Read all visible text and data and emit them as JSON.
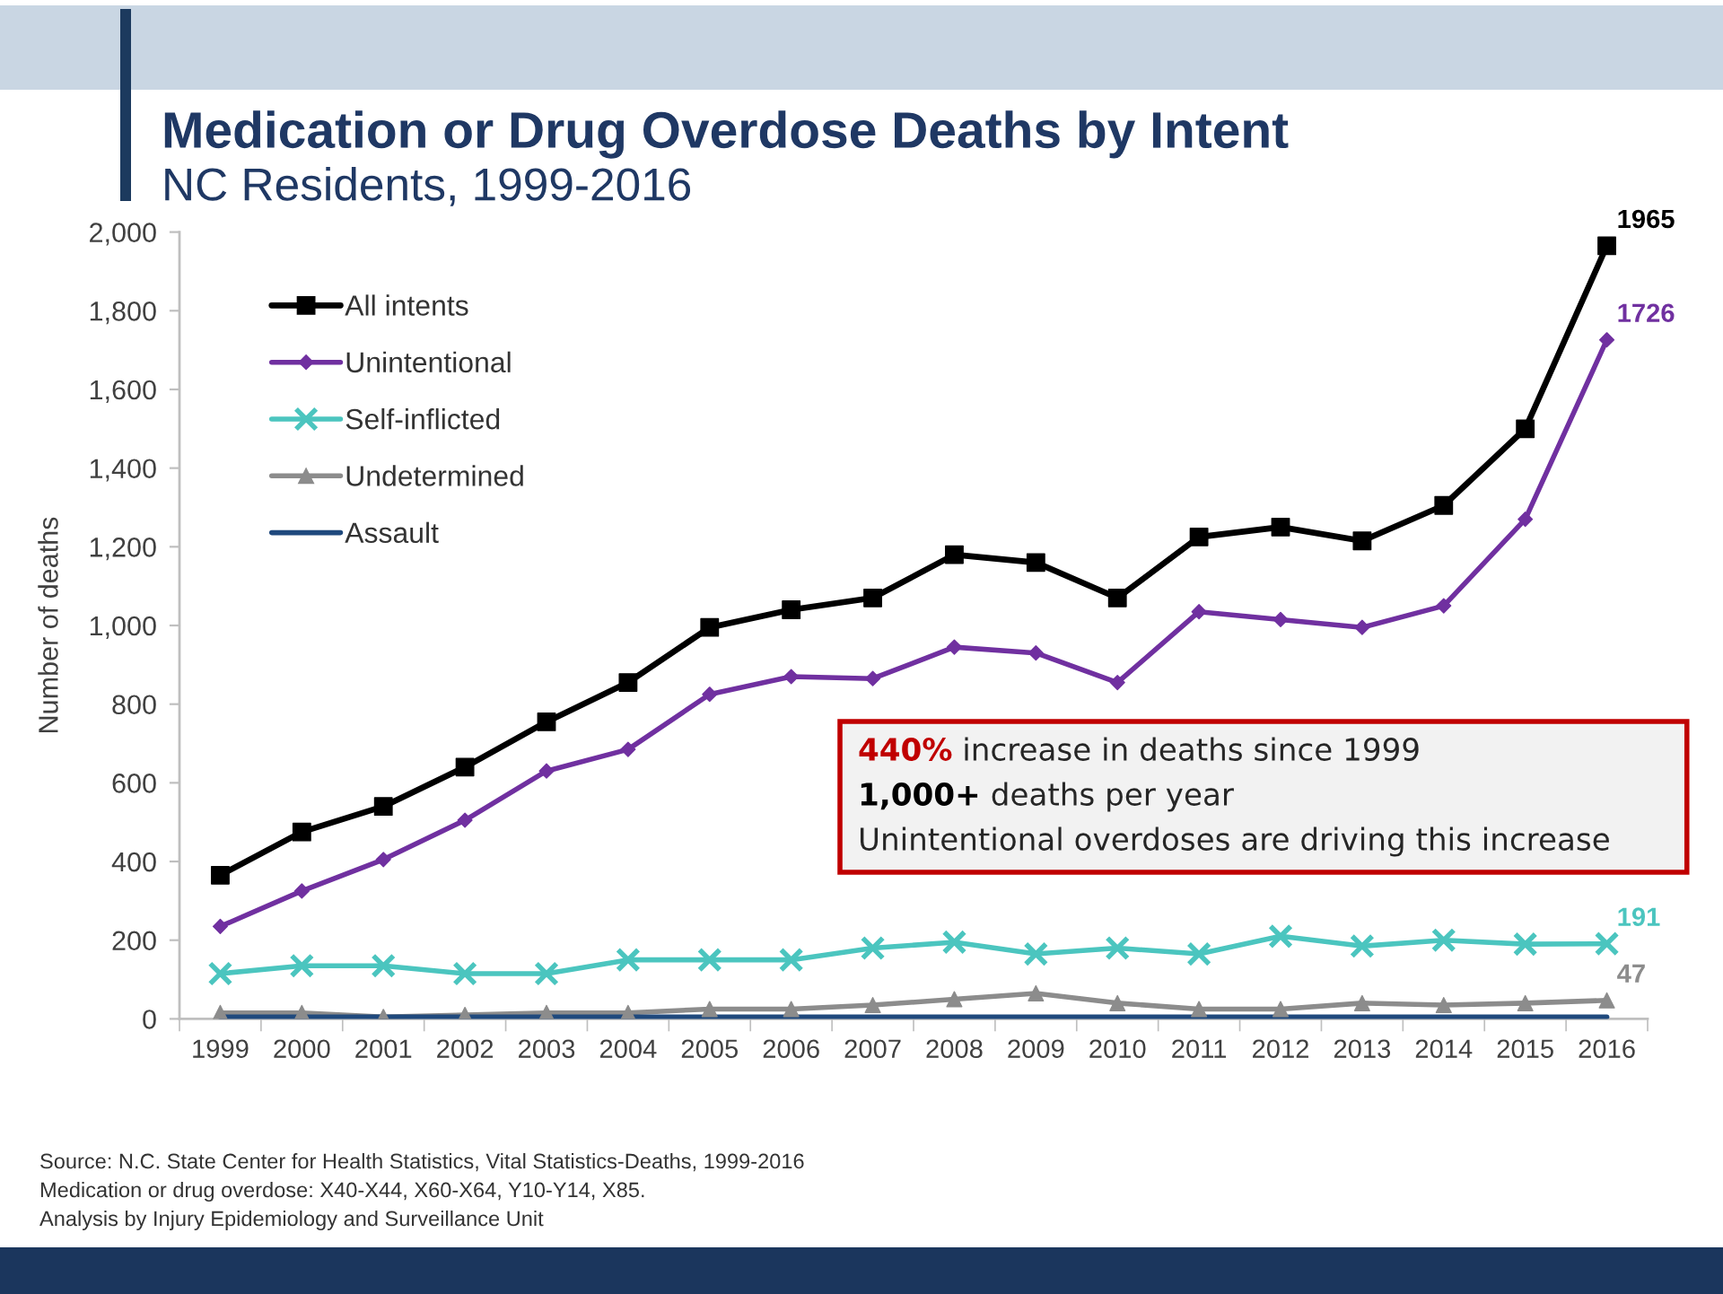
{
  "chart_data": {
    "type": "line",
    "title": "Medication or Drug Overdose Deaths by Intent",
    "subtitle": "NC Residents, 1999-2016",
    "ylabel": "Number of deaths",
    "categories": [
      "1999",
      "2000",
      "2001",
      "2002",
      "2003",
      "2004",
      "2005",
      "2006",
      "2007",
      "2008",
      "2009",
      "2010",
      "2011",
      "2012",
      "2013",
      "2014",
      "2015",
      "2016"
    ],
    "ylim": [
      0,
      2000
    ],
    "yticks": [
      0,
      200,
      400,
      600,
      800,
      {
        "value": 1000,
        "label": "1,000"
      },
      {
        "value": 1200,
        "label": "1,200"
      },
      {
        "value": 1400,
        "label": "1,400"
      },
      {
        "value": 1600,
        "label": "1,600"
      },
      {
        "value": 1800,
        "label": "1,800"
      },
      {
        "value": 2000,
        "label": "2,000"
      }
    ],
    "series": [
      {
        "name": "All intents",
        "color": "#000000",
        "marker": "square",
        "values": [
          365,
          475,
          540,
          640,
          755,
          855,
          995,
          1040,
          1070,
          1180,
          1160,
          1070,
          1225,
          1250,
          1215,
          1305,
          1500,
          1965
        ],
        "value_labels": [
          null,
          null,
          null,
          null,
          null,
          null,
          null,
          null,
          null,
          null,
          null,
          null,
          null,
          null,
          null,
          null,
          null,
          "1965"
        ]
      },
      {
        "name": "Unintentional",
        "color": "#7030a0",
        "marker": "diamond",
        "values": [
          235,
          325,
          405,
          505,
          630,
          685,
          825,
          870,
          865,
          945,
          930,
          855,
          1035,
          1015,
          995,
          1050,
          1270,
          1726
        ],
        "value_labels": [
          null,
          null,
          null,
          null,
          null,
          null,
          null,
          null,
          null,
          null,
          null,
          null,
          null,
          null,
          null,
          null,
          null,
          "1726"
        ]
      },
      {
        "name": "Self-inflicted",
        "color": "#4bc5bf",
        "marker": "cross",
        "values": [
          115,
          135,
          135,
          115,
          115,
          150,
          150,
          150,
          180,
          195,
          165,
          180,
          165,
          210,
          185,
          200,
          190,
          191
        ],
        "value_labels": [
          null,
          null,
          null,
          null,
          null,
          null,
          null,
          null,
          null,
          null,
          null,
          null,
          null,
          null,
          null,
          null,
          null,
          "191"
        ]
      },
      {
        "name": "Undetermined",
        "color": "#8c8c8c",
        "marker": "triangle",
        "values": [
          15,
          15,
          5,
          10,
          15,
          15,
          25,
          25,
          35,
          50,
          65,
          40,
          25,
          25,
          40,
          35,
          40,
          47
        ],
        "value_labels": [
          null,
          null,
          null,
          null,
          null,
          null,
          null,
          null,
          null,
          null,
          null,
          null,
          null,
          null,
          null,
          null,
          null,
          "47"
        ]
      },
      {
        "name": "Assault",
        "color": "#1f497d",
        "marker": "none",
        "values": [
          5,
          5,
          5,
          5,
          5,
          5,
          5,
          5,
          5,
          5,
          5,
          5,
          5,
          5,
          5,
          5,
          5,
          5
        ]
      }
    ],
    "legend": "top left",
    "annotations": [
      "440% increase in deaths since 1999",
      "1,000+ deaths per year",
      "Unintentional overdoses are driving this increase",
      "Source: N.C. State Center for Health Statistics, Vital Statistics-Deaths, 1999-2016",
      "Medication or drug overdose: X40-X44, X60-X64, Y10-Y14, X85.",
      "Analysis by Injury Epidemiology and Surveillance Unit"
    ]
  }
}
